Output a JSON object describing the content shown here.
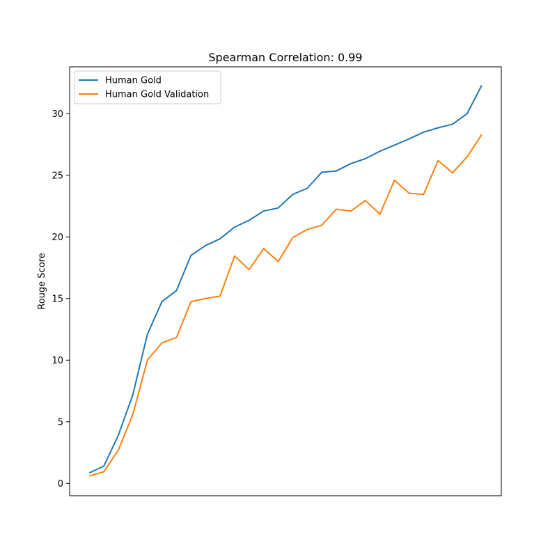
{
  "chart_data": {
    "type": "line",
    "title": "Spearman Correlation: 0.99",
    "xlabel": "",
    "ylabel": "Rouge Score",
    "x": [
      0,
      1,
      2,
      3,
      4,
      5,
      6,
      7,
      8,
      9,
      10,
      11,
      12,
      13,
      14,
      15,
      16,
      17,
      18,
      19,
      20,
      21,
      22,
      23,
      24,
      25,
      26,
      27
    ],
    "xlim": [
      -1.35,
      28.35
    ],
    "ylim": [
      -1.0,
      33.8
    ],
    "yticks": [
      0,
      5,
      10,
      15,
      20,
      25,
      30
    ],
    "grid": false,
    "legend_position": "upper-left",
    "series": [
      {
        "name": "Human Gold",
        "color": "#1f77b4",
        "values": [
          0.85,
          1.4,
          3.9,
          7.2,
          12.1,
          14.75,
          15.65,
          18.5,
          19.3,
          19.85,
          20.8,
          21.35,
          22.1,
          22.35,
          23.45,
          23.95,
          25.25,
          25.35,
          25.95,
          26.35,
          26.95,
          27.45,
          27.95,
          28.5,
          28.85,
          29.15,
          30.0,
          32.3
        ]
      },
      {
        "name": "Human Gold Validation",
        "color": "#ff7f0e",
        "values": [
          0.6,
          0.95,
          2.7,
          5.6,
          10.0,
          11.4,
          11.85,
          14.75,
          15.0,
          15.2,
          18.45,
          17.35,
          19.05,
          18.0,
          19.95,
          20.6,
          20.95,
          22.25,
          22.1,
          22.95,
          21.85,
          24.6,
          23.55,
          23.45,
          26.2,
          25.2,
          26.5,
          28.3
        ]
      }
    ]
  }
}
